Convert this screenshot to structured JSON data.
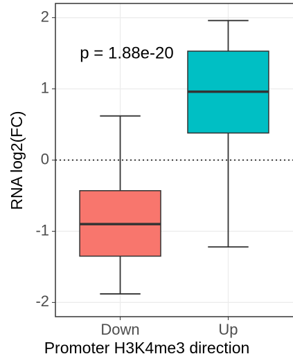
{
  "chart_data": {
    "type": "box",
    "x_label": "Promoter H3K4me3 direction",
    "y_label": "RNA log2(FC)",
    "annotation": "p = 1.88e-20",
    "categories": [
      "Down",
      "Up"
    ],
    "colors": [
      "#F8766D",
      "#00BFC4"
    ],
    "whisker_low": [
      -1.88,
      -1.22
    ],
    "q1": [
      -1.35,
      0.38
    ],
    "median": [
      -0.9,
      0.96
    ],
    "q3": [
      -0.43,
      1.53
    ],
    "whisker_high": [
      0.62,
      1.96
    ],
    "hline": 0,
    "ylim": [
      -2.2,
      2.2
    ],
    "yticks": [
      -2,
      -1,
      0,
      1,
      2
    ],
    "grid": true
  }
}
